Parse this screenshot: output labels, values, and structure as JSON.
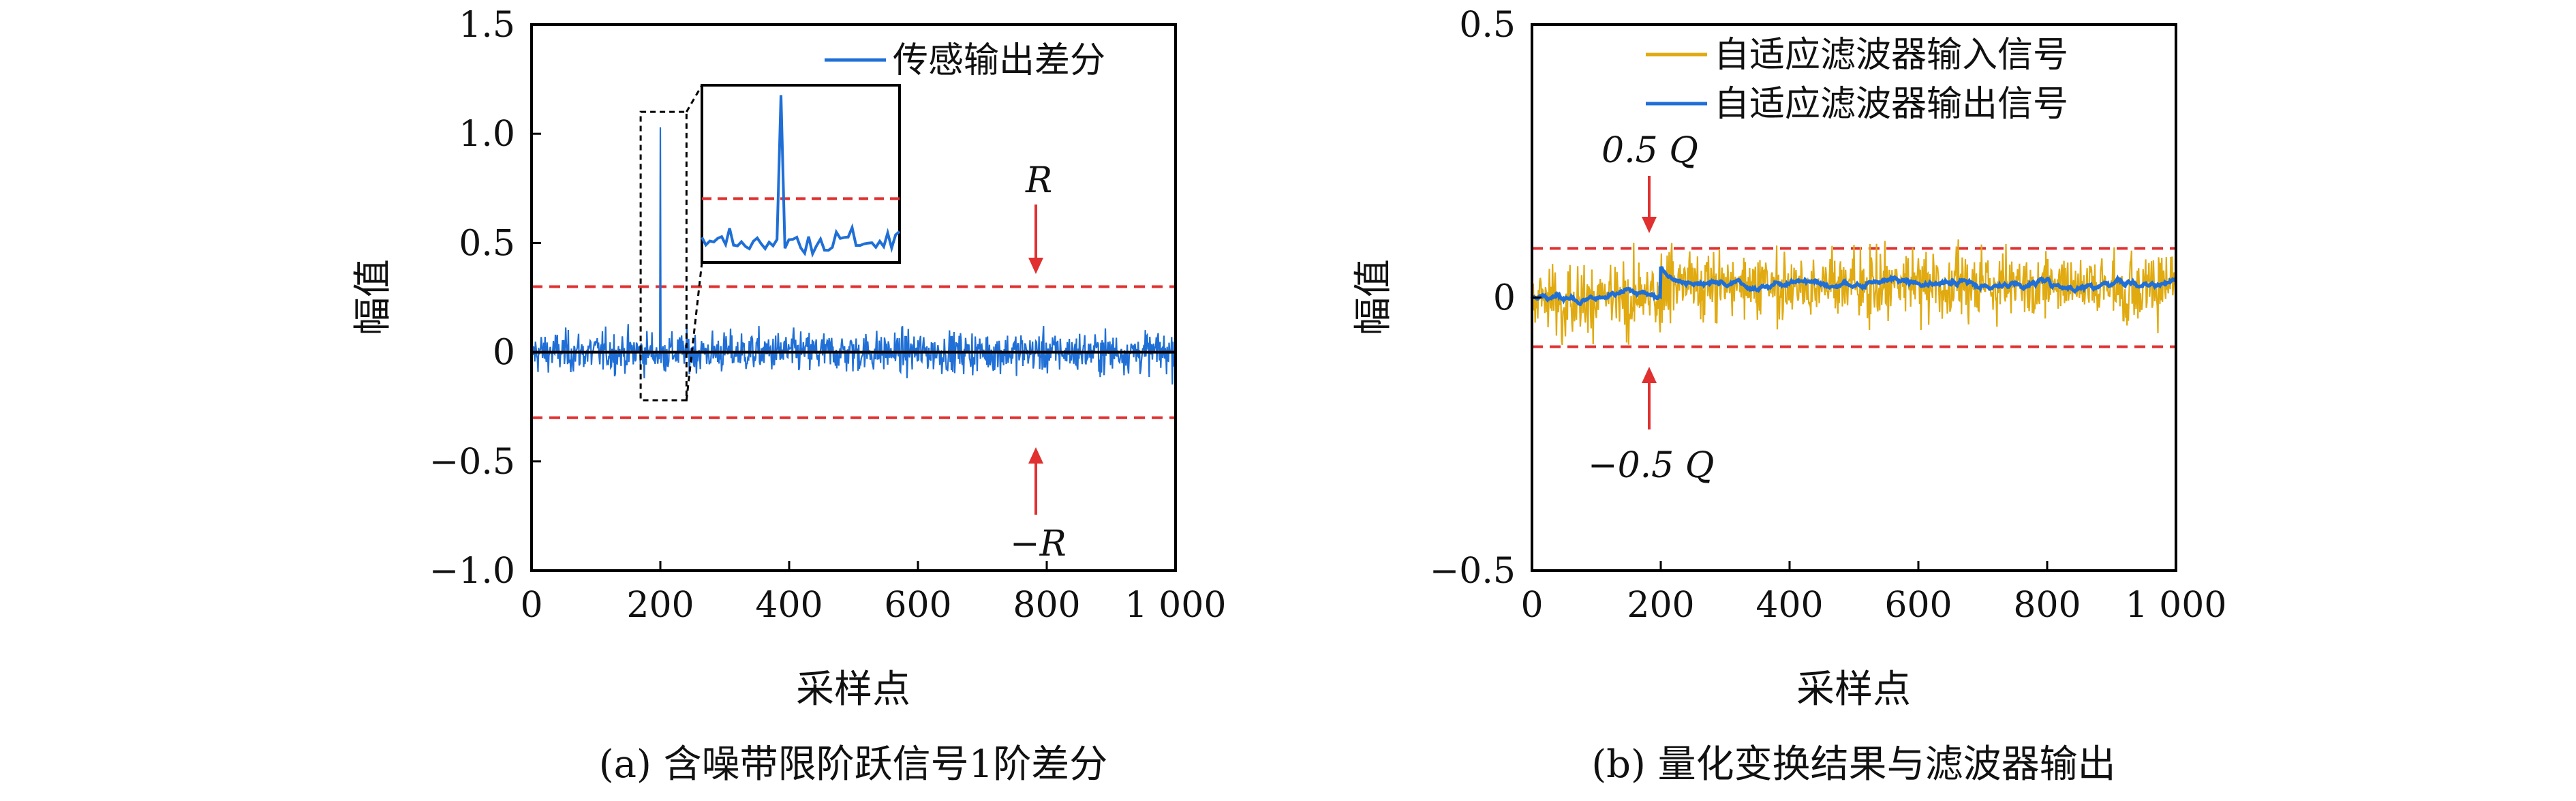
{
  "chart_data": [
    {
      "type": "line",
      "caption": "(a) 含噪带限阶跃信号1阶差分",
      "xlabel": "采样点",
      "ylabel": "幅值",
      "xlim": [
        0,
        1000
      ],
      "ylim": [
        -1.0,
        1.5
      ],
      "xticks": [
        0,
        200,
        400,
        600,
        800,
        1000
      ],
      "xtick_labels": [
        "0",
        "200",
        "400",
        "600",
        "800",
        "1 000"
      ],
      "yticks": [
        -1.0,
        -0.5,
        0,
        0.5,
        1.0,
        1.5
      ],
      "ytick_labels": [
        "−1.0",
        "−0.5",
        "0",
        "0.5",
        "1.0",
        "1.5"
      ],
      "legend_position": "top-right",
      "series": [
        {
          "name": "传感输出差分",
          "color": "#1f6fd6",
          "noise_amplitude_approx": 0.12,
          "spike": {
            "x": 200,
            "y": 1.03
          },
          "n_points": 1000
        }
      ],
      "reference_lines": [
        {
          "y": 0.3,
          "color": "#e03030",
          "style": "dashed",
          "label": "R"
        },
        {
          "y": -0.3,
          "color": "#e03030",
          "style": "dashed",
          "label": "−R"
        },
        {
          "y": 0,
          "color": "#000000",
          "style": "solid"
        }
      ],
      "inset": {
        "x_range": [
          180,
          230
        ],
        "y_range": [
          -0.22,
          1.1
        ]
      }
    },
    {
      "type": "line",
      "caption": "(b) 量化变换结果与滤波器输出",
      "xlabel": "采样点",
      "ylabel": "幅值",
      "xlim": [
        0,
        1000
      ],
      "ylim": [
        -0.5,
        0.5
      ],
      "xticks": [
        0,
        200,
        400,
        600,
        800,
        1000
      ],
      "xtick_labels": [
        "0",
        "200",
        "400",
        "600",
        "800",
        "1 000"
      ],
      "yticks": [
        -0.5,
        0,
        0.5
      ],
      "ytick_labels": [
        "−0.5",
        "0",
        "0.5"
      ],
      "legend_position": "top-right",
      "series": [
        {
          "name": "自适应滤波器输入信号",
          "color": "#e0aa10",
          "noise_amplitude_approx": 0.09,
          "n_points": 1000
        },
        {
          "name": "自适应滤波器输出信号",
          "color": "#1f6fd6",
          "n_points": 1000,
          "baseline_approx": 0.0,
          "bump": {
            "x": 200,
            "y": 0.06
          },
          "level_after_approx": 0.025
        }
      ],
      "reference_lines": [
        {
          "y": 0.09,
          "color": "#e03030",
          "style": "dashed",
          "label": "0.5 Q"
        },
        {
          "y": -0.09,
          "color": "#e03030",
          "style": "dashed",
          "label": "−0.5 Q"
        }
      ]
    }
  ]
}
